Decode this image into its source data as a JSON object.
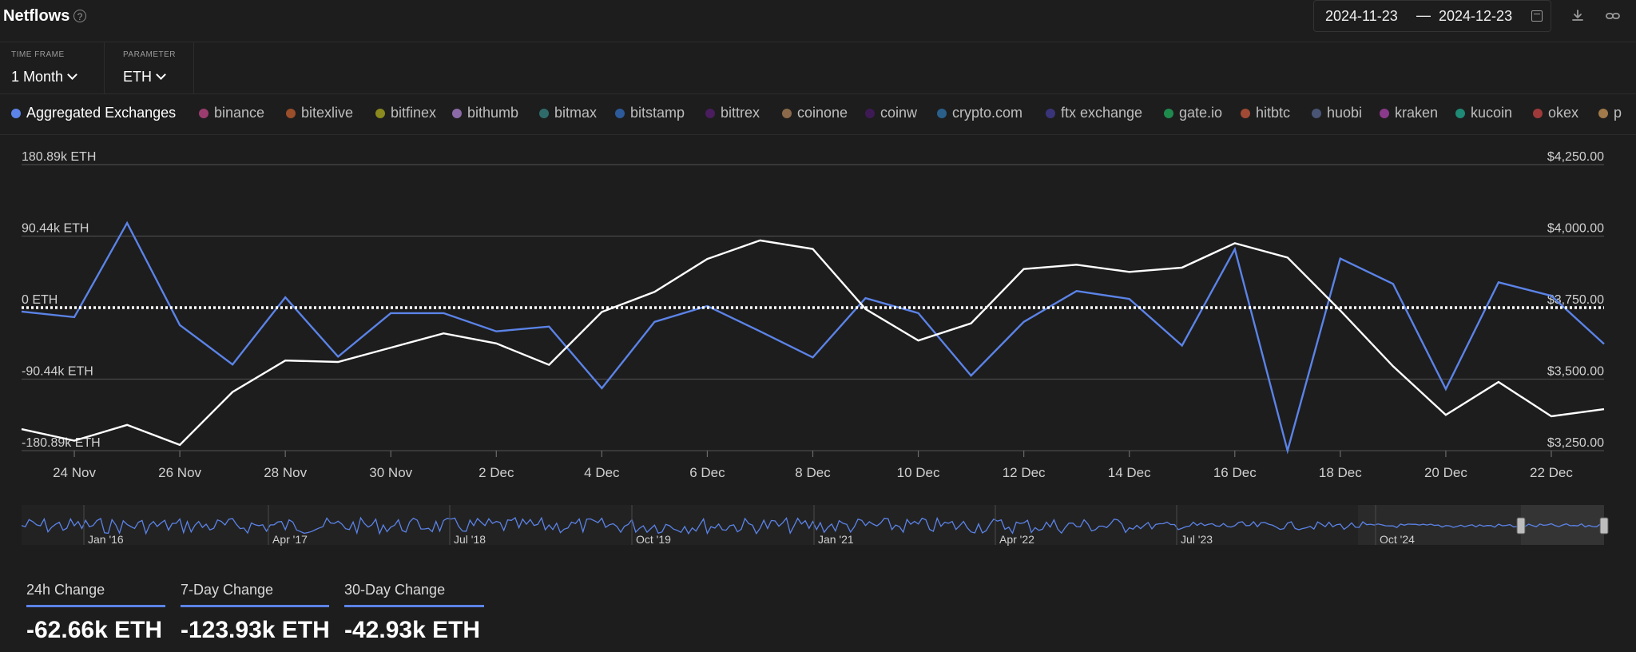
{
  "header": {
    "title": "Netflows",
    "date_start": "2024-11-23",
    "date_sep": "—",
    "date_end": "2024-12-23"
  },
  "controls": {
    "time_frame_label": "TIME FRAME",
    "time_frame_value": "1 Month",
    "parameter_label": "PARAMETER",
    "parameter_value": "ETH"
  },
  "legend": [
    {
      "label": "Aggregated Exchanges",
      "color": "#5b83e8",
      "active": true
    },
    {
      "label": "binance",
      "color": "#9a3d6e"
    },
    {
      "label": "bitexlive",
      "color": "#9a4e2a"
    },
    {
      "label": "bitfinex",
      "color": "#8a8a1e"
    },
    {
      "label": "bithumb",
      "color": "#8a6aa6"
    },
    {
      "label": "bitmax",
      "color": "#2f6b6b"
    },
    {
      "label": "bitstamp",
      "color": "#2c5a9a"
    },
    {
      "label": "bittrex",
      "color": "#4a1d5e"
    },
    {
      "label": "coinone",
      "color": "#8a6a4a"
    },
    {
      "label": "coinw",
      "color": "#3e1a55"
    },
    {
      "label": "crypto.com",
      "color": "#2a5f8a"
    },
    {
      "label": "ftx exchange",
      "color": "#3a357a"
    },
    {
      "label": "gate.io",
      "color": "#1f8a4e"
    },
    {
      "label": "hitbtc",
      "color": "#a04a35"
    },
    {
      "label": "huobi",
      "color": "#4a5575"
    },
    {
      "label": "kraken",
      "color": "#8a3a8a"
    },
    {
      "label": "kucoin",
      "color": "#1f8a75"
    },
    {
      "label": "okex",
      "color": "#a03a3a"
    },
    {
      "label": "p",
      "color": "#a07a4a"
    }
  ],
  "chart_data": {
    "type": "line",
    "x": [
      "23 Nov",
      "24 Nov",
      "25 Nov",
      "26 Nov",
      "27 Nov",
      "28 Nov",
      "29 Nov",
      "30 Nov",
      "1 Dec",
      "2 Dec",
      "3 Dec",
      "4 Dec",
      "5 Dec",
      "6 Dec",
      "7 Dec",
      "8 Dec",
      "9 Dec",
      "10 Dec",
      "11 Dec",
      "12 Dec",
      "13 Dec",
      "14 Dec",
      "15 Dec",
      "16 Dec",
      "17 Dec",
      "18 Dec",
      "19 Dec",
      "20 Dec",
      "21 Dec",
      "22 Dec",
      "23 Dec"
    ],
    "x_tick_labels": [
      "24 Nov",
      "26 Nov",
      "28 Nov",
      "30 Nov",
      "2 Dec",
      "4 Dec",
      "6 Dec",
      "8 Dec",
      "10 Dec",
      "12 Dec",
      "14 Dec",
      "16 Dec",
      "18 Dec",
      "20 Dec",
      "22 Dec"
    ],
    "series": [
      {
        "name": "Aggregated Exchanges",
        "axis": "left",
        "unit": "ETH",
        "color": "#5b83e8",
        "values": [
          -5000,
          -12000,
          107000,
          -22000,
          -72000,
          13000,
          -62000,
          -7000,
          -7000,
          -30000,
          -24000,
          -102000,
          -18000,
          2000,
          -30000,
          -63000,
          12000,
          -7000,
          -86000,
          -18000,
          21000,
          11000,
          -48000,
          74000,
          -180890,
          62000,
          30000,
          -103000,
          32000,
          15000,
          -46000
        ]
      },
      {
        "name": "",
        "axis": "right",
        "unit": "$",
        "color": "#ffffff",
        "values": [
          3325,
          3285,
          3340,
          3270,
          3455,
          3565,
          3560,
          3610,
          3660,
          3625,
          3550,
          3735,
          3805,
          3920,
          3985,
          3955,
          3745,
          3635,
          3695,
          3885,
          3900,
          3875,
          3890,
          3975,
          3925,
          3740,
          3545,
          3375,
          3490,
          3370,
          3395
        ]
      }
    ],
    "y_left": {
      "ticks": [
        "180.89k ETH",
        "90.44k ETH",
        "0 ETH",
        "-90.44k ETH",
        "-180.89k ETH"
      ],
      "range": [
        -180890,
        180890
      ]
    },
    "y_right": {
      "ticks": [
        "$4,250.00",
        "$4,000.00",
        "$3,750.00",
        "$3,500.00",
        "$3,250.00"
      ],
      "range": [
        3250,
        4250
      ]
    },
    "grid": true,
    "zero_line": "dotted"
  },
  "navigator": {
    "labels": [
      "Jan '16",
      "Apr '17",
      "Jul '18",
      "Oct '19",
      "Jan '21",
      "Apr '22",
      "Jul '23",
      "Oct '24"
    ]
  },
  "kpis": [
    {
      "label": "24h Change",
      "value": "-62.66k ETH"
    },
    {
      "label": "7-Day Change",
      "value": "-123.93k ETH"
    },
    {
      "label": "30-Day Change",
      "value": "-42.93k ETH"
    }
  ]
}
